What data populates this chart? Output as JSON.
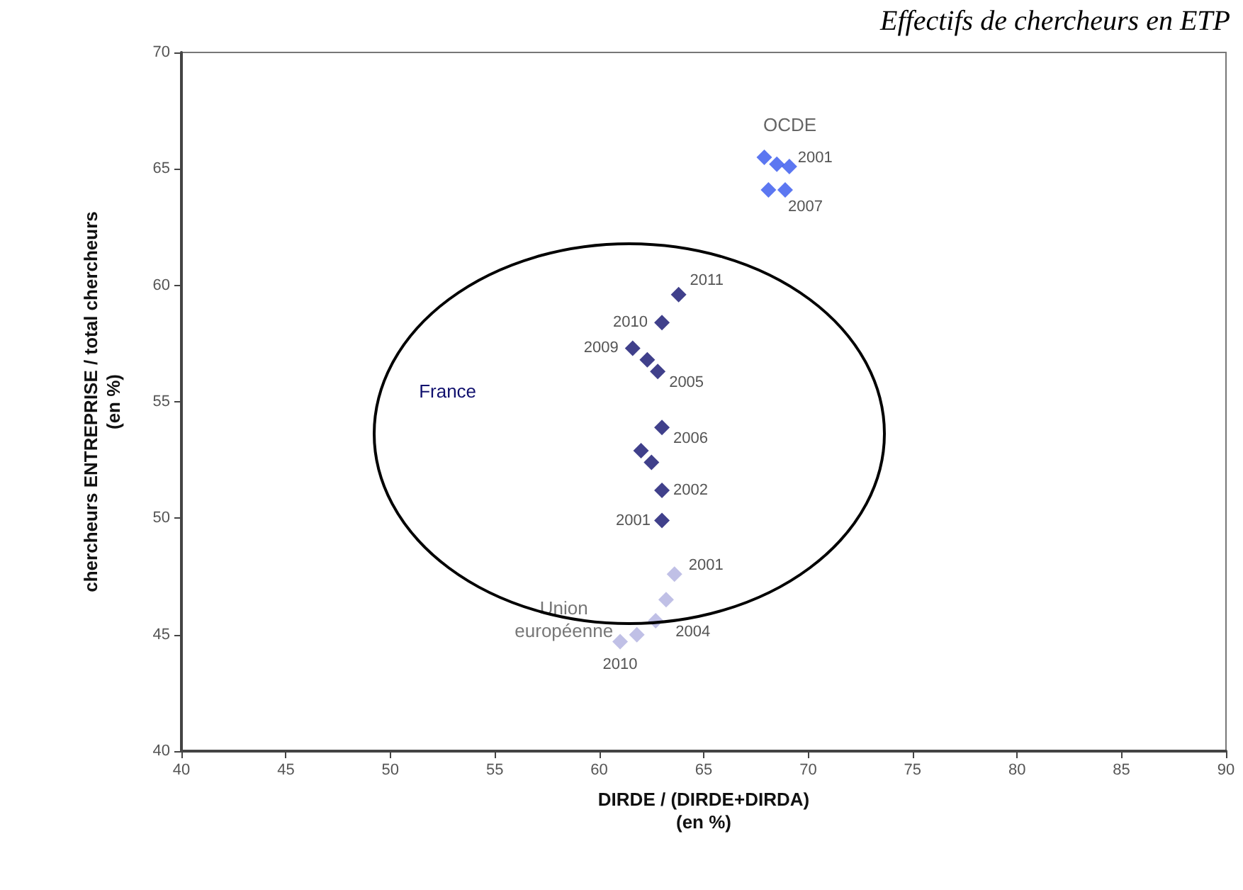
{
  "chart_data": {
    "type": "scatter",
    "title": "Effectifs de chercheurs en ETP",
    "xlabel": "DIRDE / (DIRDE+DIRDA)\n(en %)",
    "ylabel": "chercheurs ENTREPRISE / total chercheurs\n(en %)",
    "xlim": [
      40,
      90
    ],
    "xticks": [
      40,
      45,
      50,
      55,
      60,
      65,
      70,
      75,
      80,
      85,
      90
    ],
    "ylim": [
      40,
      70
    ],
    "yticks": [
      40,
      45,
      50,
      55,
      60,
      65,
      70
    ],
    "grid": false,
    "marker": "diamond",
    "series": [
      {
        "name": "OCDE",
        "color": "#3355ee",
        "x": [
          67.9,
          68.5,
          69.1,
          68.9,
          68.1
        ],
        "values": [
          65.5,
          65.2,
          65.1,
          64.1,
          64.1
        ]
      },
      {
        "name": "France",
        "color": "#10106e",
        "x": [
          63.8,
          63.0,
          61.6,
          62.3,
          62.8,
          63.0,
          62.0,
          62.5,
          63.0,
          63.0
        ],
        "values": [
          59.6,
          58.4,
          57.3,
          56.8,
          56.3,
          53.9,
          52.9,
          52.4,
          51.2,
          49.9
        ]
      },
      {
        "name": "Union européenne",
        "color": "#b0b0e0",
        "x": [
          63.6,
          63.2,
          62.7,
          61.8,
          61.0
        ],
        "values": [
          47.6,
          46.5,
          45.6,
          45.0,
          44.7
        ]
      }
    ],
    "annotations": [
      {
        "text": "2001",
        "x": 69.1,
        "y": 65.1
      },
      {
        "text": "2007",
        "x": 68.9,
        "y": 64.1
      },
      {
        "text": "2011",
        "x": 63.8,
        "y": 59.6
      },
      {
        "text": "2010",
        "x": 63.0,
        "y": 58.4
      },
      {
        "text": "2009",
        "x": 61.6,
        "y": 57.3
      },
      {
        "text": "2005",
        "x": 62.8,
        "y": 56.3
      },
      {
        "text": "2006",
        "x": 63.0,
        "y": 53.9
      },
      {
        "text": "2002",
        "x": 63.0,
        "y": 51.2
      },
      {
        "text": "2001",
        "x": 63.0,
        "y": 49.9
      },
      {
        "text": "2001",
        "x": 63.6,
        "y": 47.6
      },
      {
        "text": "2004",
        "x": 62.7,
        "y": 45.6
      },
      {
        "text": "2010",
        "x": 61.0,
        "y": 44.7
      }
    ]
  }
}
